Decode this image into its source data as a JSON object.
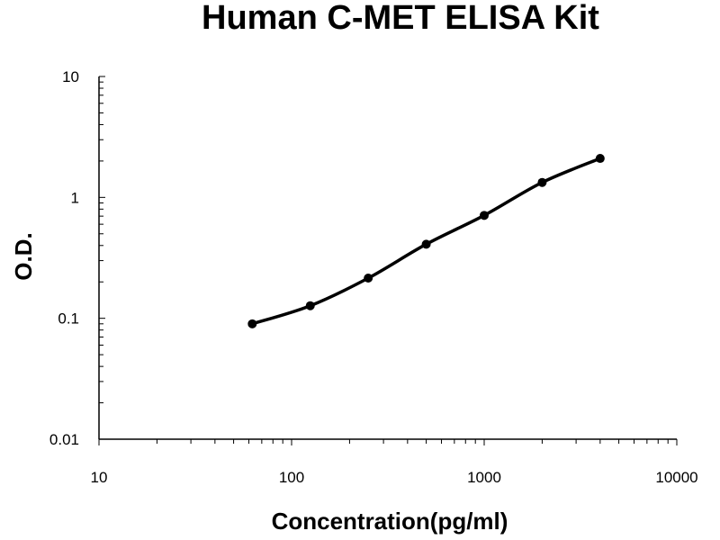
{
  "chart_data": {
    "type": "scatter",
    "title": "Human C-MET ELISA Kit",
    "xlabel": "Concentration(pg/ml)",
    "ylabel": "O.D.",
    "x_scale": "log",
    "y_scale": "log",
    "xlim": [
      10,
      10000
    ],
    "ylim": [
      0.01,
      10
    ],
    "x_ticks": [
      "10",
      "100",
      "1000",
      "10000"
    ],
    "y_ticks": [
      "0.01",
      "0.1",
      "1",
      "10"
    ],
    "grid": false,
    "legend": "none",
    "line_color": "#000000",
    "series": [
      {
        "x": [
          62.5,
          125,
          250,
          500,
          1000,
          2000,
          4000
        ],
        "y": [
          0.09,
          0.127,
          0.215,
          0.41,
          0.71,
          1.33,
          2.1
        ],
        "fit_curve": true
      }
    ]
  }
}
